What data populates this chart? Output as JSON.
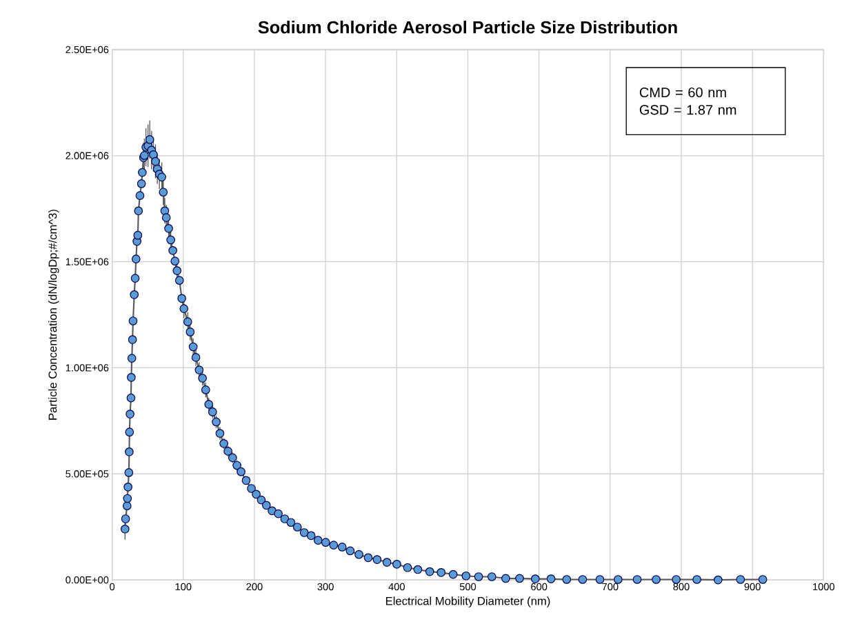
{
  "chart_data": {
    "type": "line",
    "title": "Sodium Chloride Aerosol Particle Size Distribution",
    "xlabel": "Electrical Mobility Diameter (nm)",
    "ylabel": "Particle Concentration (dN/logDp;#/cm^3)",
    "annotations": [
      "CMD = 60 nm",
      "GSD = 1.87 nm"
    ],
    "x": [
      18.1,
      18.9,
      21.0,
      21.5,
      22.3,
      23.5,
      24.0,
      24.4,
      25.2,
      26.5,
      26.9,
      27.7,
      28.6,
      29.4,
      31.1,
      32.4,
      33.6,
      34.9,
      36.1,
      37.0,
      39.1,
      41.2,
      42.4,
      44.1,
      45.3,
      47.5,
      50.4,
      52.9,
      55.4,
      58.0,
      60.9,
      63.5,
      66.4,
      69.8,
      71.9,
      74.0,
      76.1,
      79.4,
      82.4,
      85.3,
      88.3,
      91.2,
      94.6,
      97.9,
      100.9,
      106.3,
      109.7,
      113.9,
      117.7,
      122.3,
      127.0,
      131.5,
      135.8,
      141.2,
      146.3,
      151.5,
      157.0,
      162.8,
      169.3,
      175.4,
      181.2,
      188.3,
      195.7,
      202.5,
      209.6,
      216.8,
      224.8,
      233.5,
      242.6,
      251.3,
      260.3,
      270.0,
      279.7,
      289.4,
      300.1,
      311.3,
      323.3,
      334.6,
      346.9,
      359.9,
      372.4,
      386.2,
      400.1,
      415.2,
      429.6,
      446.4,
      462.4,
      479.3,
      497.4,
      515.1,
      533.7,
      553.2,
      572.7,
      594.8,
      616.9,
      638.9,
      661.3,
      685.6,
      711.1,
      738.0,
      764.7,
      792.9,
      821.9,
      851.7,
      883.2,
      914.5
    ],
    "series": [
      {
        "color": "#5b9bd5",
        "marker": "circle",
        "line_style": "solid",
        "values": [
          240000,
          288000,
          349000,
          384000,
          438000,
          506000,
          604000,
          697000,
          782000,
          858000,
          955000,
          1045000,
          1133000,
          1221000,
          1345000,
          1422000,
          1513000,
          1596000,
          1625000,
          1740000,
          1812000,
          1868000,
          1921000,
          1991000,
          2001000,
          2040000,
          2047000,
          2076000,
          2026000,
          2005000,
          1973000,
          1937000,
          1913000,
          1899000,
          1828000,
          1740000,
          1708000,
          1657000,
          1603000,
          1553000,
          1503000,
          1458000,
          1412000,
          1327000,
          1279000,
          1217000,
          1169000,
          1099000,
          1049000,
          990000,
          951000,
          896000,
          828000,
          792000,
          745000,
          691000,
          643000,
          607000,
          576000,
          540000,
          510000,
          469000,
          431000,
          404000,
          377000,
          352000,
          326000,
          312000,
          288000,
          271000,
          249000,
          223000,
          209000,
          187000,
          177000,
          164000,
          155000,
          137000,
          120000,
          105000,
          96000,
          83000,
          74000,
          58000,
          49000,
          39000,
          35000,
          26000,
          19000,
          15000,
          15000,
          7000,
          7000,
          5000,
          5000,
          2000,
          2000,
          2000,
          2000,
          2000,
          2000,
          2000,
          2000,
          0,
          2000,
          2000
        ],
        "errors": [
          50000,
          null,
          null,
          null,
          null,
          null,
          null,
          null,
          null,
          null,
          null,
          null,
          null,
          null,
          null,
          null,
          null,
          null,
          null,
          null,
          null,
          null,
          null,
          70000,
          80000,
          90000,
          100000,
          90000,
          90000,
          80000,
          80000,
          70000,
          70000,
          70000,
          60000,
          60000,
          60000,
          55000,
          55000,
          null,
          null,
          50000,
          null,
          null,
          45000,
          45000,
          40000,
          40000,
          40000,
          35000,
          35000,
          35000,
          30000,
          30000,
          30000,
          30000,
          25000,
          25000,
          25000,
          25000,
          20000,
          20000,
          20000,
          20000,
          20000,
          null,
          null,
          null,
          15000,
          15000,
          10000,
          10000,
          null,
          10000,
          10000,
          10000,
          10000,
          null,
          null,
          null,
          null,
          null,
          null,
          null,
          null,
          null,
          null,
          null,
          null,
          null,
          null,
          null,
          null,
          null,
          null,
          null,
          null,
          null,
          null,
          null,
          null,
          null,
          null,
          null,
          null,
          null
        ]
      }
    ],
    "xlim": [
      0,
      1000
    ],
    "xticks": [
      0,
      100,
      200,
      300,
      400,
      500,
      600,
      700,
      800,
      900,
      1000
    ],
    "ylim": [
      0,
      2500000
    ],
    "yticks": [
      {
        "value": 0,
        "label": "0.00E+00"
      },
      {
        "value": 500000,
        "label": "5.00E+05"
      },
      {
        "value": 1000000,
        "label": "1.00E+06"
      },
      {
        "value": 1500000,
        "label": "1.50E+06"
      },
      {
        "value": 2000000,
        "label": "2.00E+06"
      },
      {
        "value": 2500000,
        "label": "2.50E+06"
      }
    ],
    "grid": true
  }
}
